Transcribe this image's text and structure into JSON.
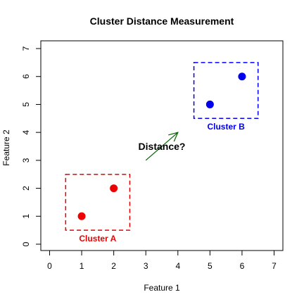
{
  "chart_data": {
    "type": "scatter",
    "title": "Cluster Distance Measurement",
    "xlabel": "Feature 1",
    "ylabel": "Feature 2",
    "xlim": [
      0,
      7
    ],
    "ylim": [
      0,
      7
    ],
    "xticks": [
      "0",
      "1",
      "2",
      "3",
      "4",
      "5",
      "6",
      "7"
    ],
    "yticks": [
      "0",
      "1",
      "2",
      "3",
      "4",
      "5",
      "6",
      "7"
    ],
    "grid": false,
    "series": [
      {
        "name": "Cluster A",
        "color": "#ee0000",
        "x": [
          1,
          2
        ],
        "y": [
          1,
          2
        ]
      },
      {
        "name": "Cluster B",
        "color": "#0000ee",
        "x": [
          5,
          6
        ],
        "y": [
          5,
          6
        ]
      }
    ],
    "boxes": [
      {
        "label": "Cluster A",
        "color": "#ee0000",
        "xmin": 0.5,
        "xmax": 2.5,
        "ymin": 0.5,
        "ymax": 2.5,
        "label_x": 1.5,
        "label_y": 0.2
      },
      {
        "label": "Cluster B",
        "color": "#0000ee",
        "xmin": 4.5,
        "xmax": 6.5,
        "ymin": 4.5,
        "ymax": 6.5,
        "label_x": 5.5,
        "label_y": 4.2
      }
    ],
    "arrow": {
      "color": "#006400",
      "x0": 3,
      "y0": 3,
      "x1": 4,
      "y1": 4
    },
    "annotation": {
      "text": "Distance?",
      "x": 3.5,
      "y": 3.5
    }
  }
}
